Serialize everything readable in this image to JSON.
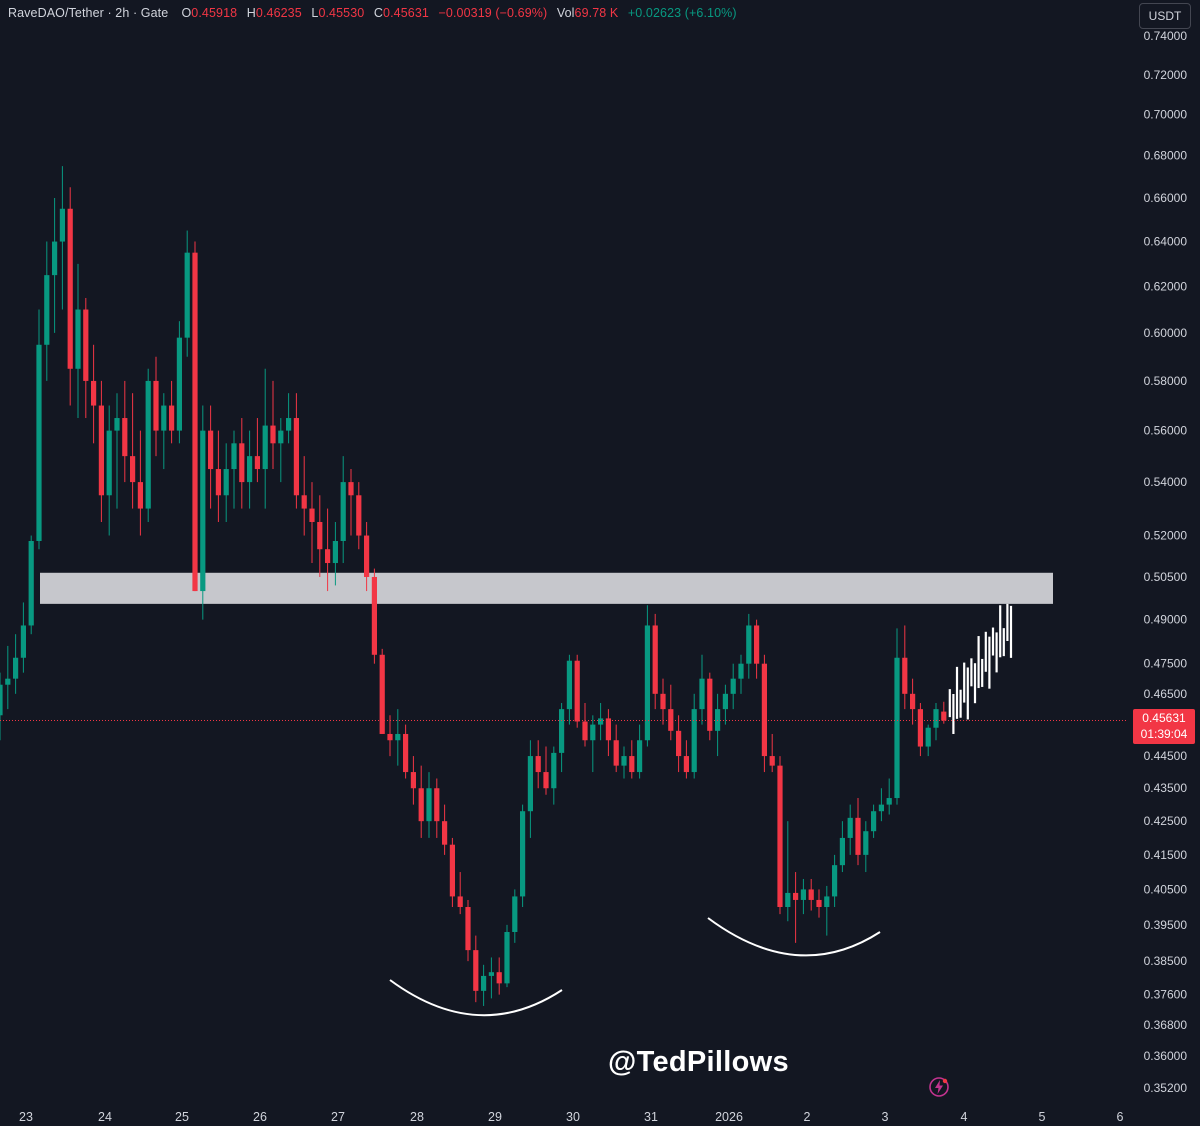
{
  "header": {
    "symbol": "RaveDAO/Tether · 2h · Gate",
    "o_label": "O",
    "o_value": "0.45918",
    "h_label": "H",
    "h_value": "0.46235",
    "l_label": "L",
    "l_value": "0.45530",
    "c_label": "C",
    "c_value": "0.45631",
    "change": "−0.00319 (−0.69%)",
    "vol_label": "Vol",
    "vol_value": "69.78 K",
    "vol_change": "+0.02623 (+6.10%)"
  },
  "currency_button": "USDT",
  "price_label": {
    "price": "0.45631",
    "countdown": "01:39:04"
  },
  "watermark": "@TedPillows",
  "colors": {
    "up": "#089981",
    "down": "#f23645",
    "background": "#131722",
    "zone": "#c6c7cc",
    "projection": "#ffffff"
  },
  "icons": {
    "bolt": "lightning-bolt-icon"
  },
  "chart_data": {
    "type": "candlestick",
    "scale": "log",
    "y_ticks": [
      "0.74000",
      "0.72000",
      "0.70000",
      "0.68000",
      "0.66000",
      "0.64000",
      "0.62000",
      "0.60000",
      "0.58000",
      "0.56000",
      "0.54000",
      "0.52000",
      "0.50500",
      "0.49000",
      "0.47500",
      "0.46500",
      "0.45500",
      "0.44500",
      "0.43500",
      "0.42500",
      "0.41500",
      "0.40500",
      "0.39500",
      "0.38500",
      "0.37600",
      "0.36800",
      "0.36000",
      "0.35200"
    ],
    "x_ticks": [
      "23",
      "24",
      "25",
      "26",
      "27",
      "28",
      "29",
      "30",
      "31",
      "2026",
      "2",
      "3",
      "4",
      "5",
      "6"
    ],
    "last_price": 0.45631,
    "resistance_zone": [
      0.4955,
      0.5065
    ],
    "projection_high": 0.4955,
    "candles": [
      [
        0.458,
        0.472,
        0.45,
        0.468
      ],
      [
        0.468,
        0.481,
        0.46,
        0.47
      ],
      [
        0.47,
        0.485,
        0.465,
        0.477
      ],
      [
        0.477,
        0.496,
        0.472,
        0.488
      ],
      [
        0.488,
        0.52,
        0.485,
        0.518
      ],
      [
        0.518,
        0.61,
        0.515,
        0.595
      ],
      [
        0.595,
        0.64,
        0.58,
        0.625
      ],
      [
        0.625,
        0.66,
        0.6,
        0.64
      ],
      [
        0.64,
        0.675,
        0.61,
        0.655
      ],
      [
        0.655,
        0.665,
        0.57,
        0.585
      ],
      [
        0.585,
        0.63,
        0.565,
        0.61
      ],
      [
        0.61,
        0.615,
        0.565,
        0.58
      ],
      [
        0.58,
        0.595,
        0.555,
        0.57
      ],
      [
        0.57,
        0.58,
        0.525,
        0.535
      ],
      [
        0.535,
        0.57,
        0.52,
        0.56
      ],
      [
        0.56,
        0.575,
        0.53,
        0.565
      ],
      [
        0.565,
        0.58,
        0.54,
        0.55
      ],
      [
        0.55,
        0.575,
        0.53,
        0.54
      ],
      [
        0.54,
        0.56,
        0.52,
        0.53
      ],
      [
        0.53,
        0.585,
        0.525,
        0.58
      ],
      [
        0.58,
        0.59,
        0.55,
        0.56
      ],
      [
        0.56,
        0.575,
        0.545,
        0.57
      ],
      [
        0.57,
        0.58,
        0.555,
        0.56
      ],
      [
        0.56,
        0.605,
        0.555,
        0.598
      ],
      [
        0.598,
        0.645,
        0.59,
        0.635
      ],
      [
        0.635,
        0.64,
        0.5,
        0.5
      ],
      [
        0.5,
        0.57,
        0.49,
        0.56
      ],
      [
        0.56,
        0.57,
        0.53,
        0.545
      ],
      [
        0.545,
        0.56,
        0.525,
        0.535
      ],
      [
        0.535,
        0.555,
        0.525,
        0.545
      ],
      [
        0.545,
        0.56,
        0.53,
        0.555
      ],
      [
        0.555,
        0.565,
        0.53,
        0.54
      ],
      [
        0.54,
        0.56,
        0.53,
        0.55
      ],
      [
        0.55,
        0.565,
        0.54,
        0.545
      ],
      [
        0.545,
        0.585,
        0.53,
        0.562
      ],
      [
        0.562,
        0.58,
        0.545,
        0.555
      ],
      [
        0.555,
        0.565,
        0.54,
        0.56
      ],
      [
        0.56,
        0.575,
        0.555,
        0.565
      ],
      [
        0.565,
        0.575,
        0.53,
        0.535
      ],
      [
        0.535,
        0.55,
        0.52,
        0.53
      ],
      [
        0.53,
        0.54,
        0.51,
        0.525
      ],
      [
        0.525,
        0.535,
        0.505,
        0.515
      ],
      [
        0.515,
        0.53,
        0.5,
        0.51
      ],
      [
        0.51,
        0.525,
        0.502,
        0.518
      ],
      [
        0.518,
        0.55,
        0.51,
        0.54
      ],
      [
        0.54,
        0.545,
        0.52,
        0.535
      ],
      [
        0.535,
        0.54,
        0.515,
        0.52
      ],
      [
        0.52,
        0.525,
        0.5,
        0.505
      ],
      [
        0.505,
        0.508,
        0.475,
        0.478
      ],
      [
        0.478,
        0.48,
        0.452,
        0.452
      ],
      [
        0.452,
        0.458,
        0.445,
        0.45
      ],
      [
        0.45,
        0.46,
        0.442,
        0.452
      ],
      [
        0.452,
        0.455,
        0.438,
        0.44
      ],
      [
        0.44,
        0.445,
        0.43,
        0.435
      ],
      [
        0.435,
        0.442,
        0.42,
        0.425
      ],
      [
        0.425,
        0.44,
        0.42,
        0.435
      ],
      [
        0.435,
        0.438,
        0.42,
        0.425
      ],
      [
        0.425,
        0.43,
        0.415,
        0.418
      ],
      [
        0.418,
        0.42,
        0.4,
        0.403
      ],
      [
        0.403,
        0.41,
        0.398,
        0.4
      ],
      [
        0.4,
        0.402,
        0.385,
        0.388
      ],
      [
        0.388,
        0.392,
        0.374,
        0.377
      ],
      [
        0.377,
        0.384,
        0.373,
        0.381
      ],
      [
        0.381,
        0.386,
        0.375,
        0.382
      ],
      [
        0.382,
        0.386,
        0.376,
        0.379
      ],
      [
        0.379,
        0.395,
        0.378,
        0.393
      ],
      [
        0.393,
        0.405,
        0.39,
        0.403
      ],
      [
        0.403,
        0.43,
        0.4,
        0.428
      ],
      [
        0.428,
        0.45,
        0.42,
        0.445
      ],
      [
        0.445,
        0.45,
        0.435,
        0.44
      ],
      [
        0.44,
        0.448,
        0.433,
        0.435
      ],
      [
        0.435,
        0.448,
        0.43,
        0.446
      ],
      [
        0.446,
        0.462,
        0.44,
        0.46
      ],
      [
        0.46,
        0.478,
        0.455,
        0.476
      ],
      [
        0.476,
        0.478,
        0.454,
        0.456
      ],
      [
        0.456,
        0.462,
        0.448,
        0.45
      ],
      [
        0.45,
        0.458,
        0.44,
        0.455
      ],
      [
        0.455,
        0.462,
        0.45,
        0.457
      ],
      [
        0.457,
        0.46,
        0.445,
        0.45
      ],
      [
        0.45,
        0.455,
        0.44,
        0.442
      ],
      [
        0.442,
        0.448,
        0.438,
        0.445
      ],
      [
        0.445,
        0.45,
        0.438,
        0.44
      ],
      [
        0.44,
        0.455,
        0.438,
        0.45
      ],
      [
        0.45,
        0.495,
        0.448,
        0.488
      ],
      [
        0.488,
        0.492,
        0.46,
        0.465
      ],
      [
        0.465,
        0.47,
        0.455,
        0.46
      ],
      [
        0.46,
        0.468,
        0.45,
        0.453
      ],
      [
        0.453,
        0.458,
        0.44,
        0.445
      ],
      [
        0.445,
        0.45,
        0.438,
        0.44
      ],
      [
        0.44,
        0.465,
        0.438,
        0.46
      ],
      [
        0.46,
        0.478,
        0.455,
        0.47
      ],
      [
        0.47,
        0.472,
        0.45,
        0.453
      ],
      [
        0.453,
        0.465,
        0.445,
        0.46
      ],
      [
        0.46,
        0.468,
        0.455,
        0.465
      ],
      [
        0.465,
        0.475,
        0.46,
        0.47
      ],
      [
        0.47,
        0.478,
        0.465,
        0.475
      ],
      [
        0.475,
        0.492,
        0.47,
        0.488
      ],
      [
        0.488,
        0.49,
        0.47,
        0.475
      ],
      [
        0.475,
        0.478,
        0.44,
        0.445
      ],
      [
        0.445,
        0.452,
        0.44,
        0.442
      ],
      [
        0.442,
        0.445,
        0.398,
        0.4
      ],
      [
        0.4,
        0.425,
        0.396,
        0.404
      ],
      [
        0.404,
        0.41,
        0.39,
        0.402
      ],
      [
        0.402,
        0.408,
        0.398,
        0.405
      ],
      [
        0.405,
        0.408,
        0.399,
        0.402
      ],
      [
        0.402,
        0.405,
        0.397,
        0.4
      ],
      [
        0.4,
        0.406,
        0.392,
        0.403
      ],
      [
        0.403,
        0.415,
        0.4,
        0.412
      ],
      [
        0.412,
        0.425,
        0.41,
        0.42
      ],
      [
        0.42,
        0.43,
        0.415,
        0.426
      ],
      [
        0.426,
        0.432,
        0.412,
        0.415
      ],
      [
        0.415,
        0.425,
        0.41,
        0.422
      ],
      [
        0.422,
        0.43,
        0.42,
        0.428
      ],
      [
        0.428,
        0.435,
        0.425,
        0.43
      ],
      [
        0.43,
        0.438,
        0.427,
        0.432
      ],
      [
        0.432,
        0.487,
        0.43,
        0.477
      ],
      [
        0.477,
        0.488,
        0.46,
        0.465
      ],
      [
        0.465,
        0.47,
        0.455,
        0.46
      ],
      [
        0.46,
        0.462,
        0.445,
        0.448
      ],
      [
        0.448,
        0.455,
        0.445,
        0.454
      ],
      [
        0.454,
        0.462,
        0.45,
        0.46
      ],
      [
        0.4592,
        0.4624,
        0.4553,
        0.4563
      ]
    ]
  }
}
